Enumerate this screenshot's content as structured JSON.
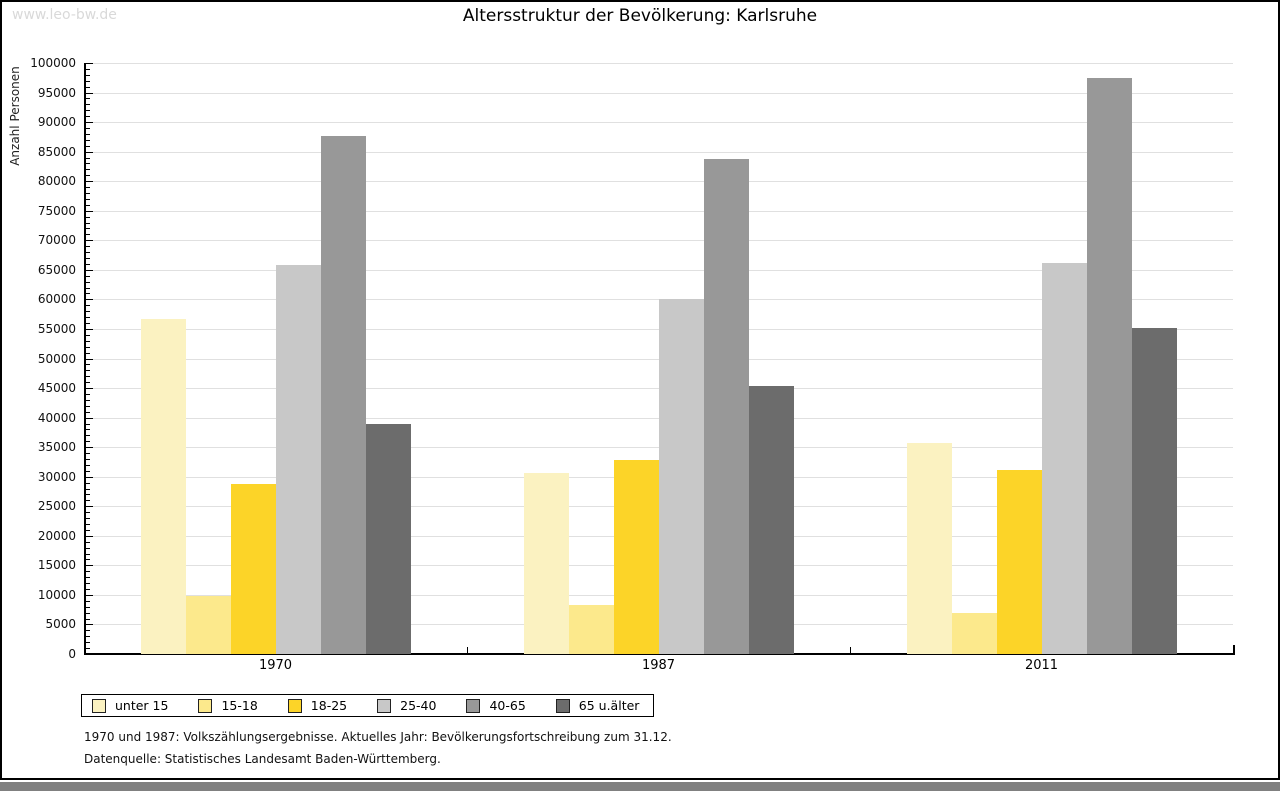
{
  "watermark": "www.leo-bw.de",
  "footnotes": [
    "1970 und 1987: Volkszählungsergebnisse. Aktuelles Jahr: Bevölkerungsfortschreibung zum 31.12.",
    "Datenquelle: Statistisches Landesamt Baden-Württemberg."
  ],
  "chart_data": {
    "type": "bar",
    "title": "Altersstruktur der Bevölkerung: Karlsruhe",
    "ylabel": "Anzahl Personen",
    "xlabel": "",
    "categories": [
      "1970",
      "1987",
      "2011"
    ],
    "series": [
      {
        "name": "unter 15",
        "color": "#fbf2c1",
        "values": [
          56700,
          30700,
          35700
        ]
      },
      {
        "name": "15-18",
        "color": "#fce98c",
        "values": [
          9800,
          8300,
          6900
        ]
      },
      {
        "name": "18-25",
        "color": "#fcd428",
        "values": [
          28800,
          32900,
          31100
        ]
      },
      {
        "name": "25-40",
        "color": "#c8c8c8",
        "values": [
          65800,
          60000,
          66100
        ]
      },
      {
        "name": "40-65",
        "color": "#989898",
        "values": [
          87700,
          83800,
          97500
        ]
      },
      {
        "name": "65 u.älter",
        "color": "#6c6c6c",
        "values": [
          39000,
          45300,
          55100
        ]
      }
    ],
    "ylim": [
      0,
      100000
    ],
    "ytick_step": 5000,
    "minor_tick_step": 1000,
    "grid": true,
    "legend_position": "bottom"
  }
}
